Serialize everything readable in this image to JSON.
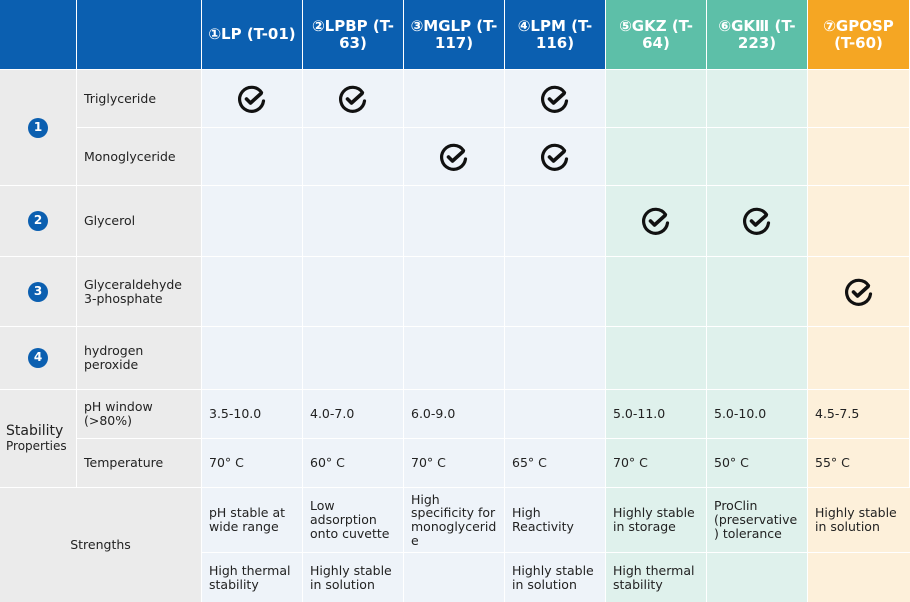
{
  "columns": [
    "①LP (T-01)",
    "②LPBP (T-63)",
    "③MGLP (T-117)",
    "④LPM (T-116)",
    "⑤GKZ (T-64)",
    "⑥GKⅢ (T-223)",
    "⑦GPOSP (T-60)"
  ],
  "substrate_groups": [
    {
      "number": "1",
      "rows": [
        {
          "name": "Triglyceride",
          "checks": [
            true,
            true,
            false,
            true,
            false,
            false,
            false
          ]
        },
        {
          "name": "Monoglyceride",
          "checks": [
            false,
            false,
            true,
            true,
            false,
            false,
            false
          ]
        }
      ]
    },
    {
      "number": "2",
      "rows": [
        {
          "name": "Glycerol",
          "checks": [
            false,
            false,
            false,
            false,
            true,
            true,
            false
          ]
        }
      ]
    },
    {
      "number": "3",
      "rows": [
        {
          "name": "Glyceraldehyde 3-phosphate",
          "checks": [
            false,
            false,
            false,
            false,
            false,
            false,
            true
          ]
        }
      ]
    },
    {
      "number": "4",
      "rows": [
        {
          "name": "hydrogen peroxide",
          "checks": [
            false,
            false,
            false,
            false,
            false,
            false,
            false
          ]
        }
      ]
    }
  ],
  "stability": {
    "title": "Stability",
    "subtitle": "Properties",
    "rows": [
      {
        "name": "pH window (>80%)",
        "values": [
          "3.5-10.0",
          "4.0-7.0",
          "6.0-9.0",
          null,
          "5.0-11.0",
          "5.0-10.0",
          "4.5-7.5"
        ]
      },
      {
        "name": "Temperature",
        "values": [
          "70° C",
          "60° C",
          "70° C",
          "65° C",
          "70° C",
          "50° C",
          "55° C"
        ]
      }
    ]
  },
  "strengths": {
    "label": "Strengths",
    "rows": [
      [
        "pH stable at wide range",
        "Low adsorption onto cuvette",
        "High specificity for monoglyceride",
        "High Reactivity",
        "Highly stable in storage",
        "ProClin (preservative) tolerance",
        "Highly stable in solution"
      ],
      [
        "High thermal stability",
        "Highly stable in solution",
        null,
        "Highly stable in solution",
        "High thermal stability",
        null,
        null
      ]
    ]
  }
}
